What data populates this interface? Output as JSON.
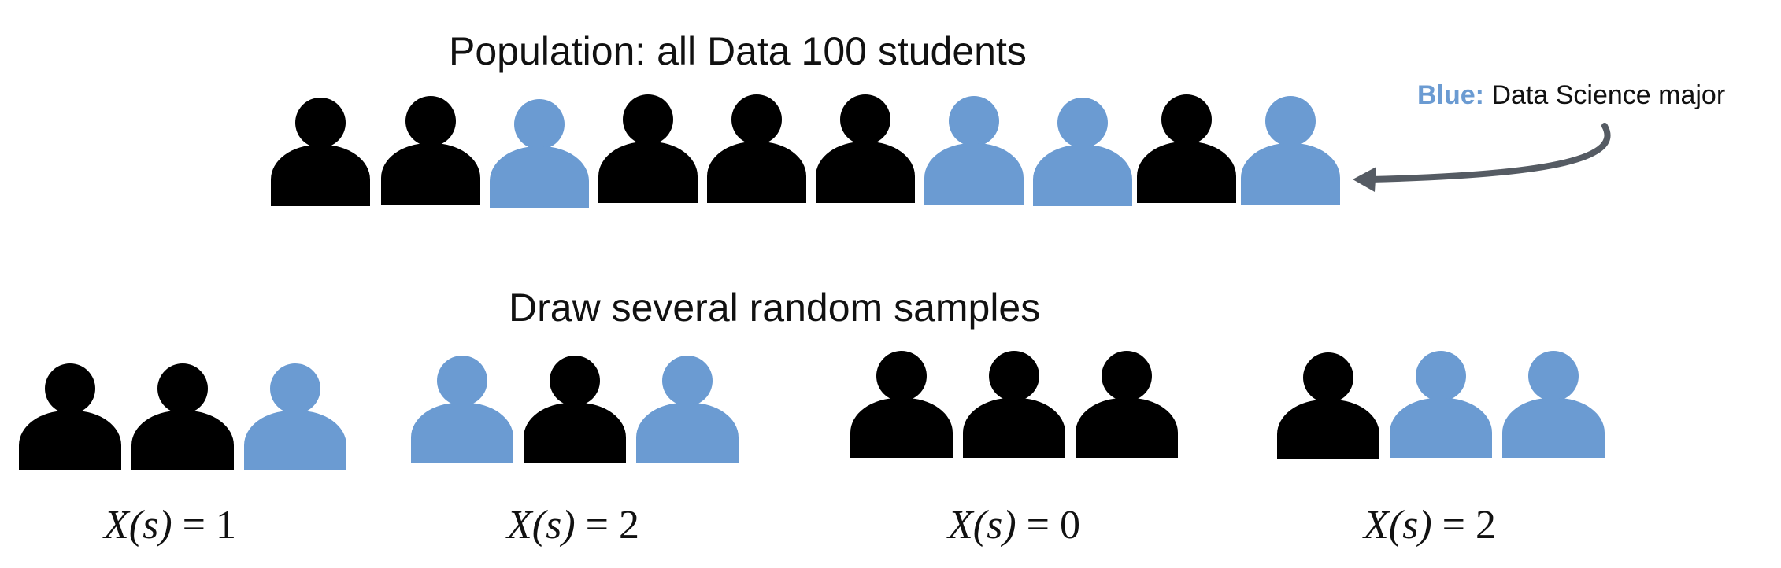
{
  "colors": {
    "major": "#6b9bd2",
    "other": "#000000",
    "arrow": "#555b63"
  },
  "population": {
    "title": "Population: all Data 100 students",
    "people": [
      "other",
      "other",
      "major",
      "other",
      "other",
      "other",
      "major",
      "major",
      "other",
      "major"
    ]
  },
  "legend": {
    "key": "Blue:",
    "text": "Data Science major"
  },
  "samples_title": "Draw several random samples",
  "samples": [
    {
      "people": [
        "other",
        "other",
        "major"
      ],
      "label_fn": "X(s)",
      "label_rest": " = 1"
    },
    {
      "people": [
        "major",
        "other",
        "major"
      ],
      "label_fn": "X(s)",
      "label_rest": " = 2"
    },
    {
      "people": [
        "other",
        "other",
        "other"
      ],
      "label_fn": "X(s)",
      "label_rest": " = 0"
    },
    {
      "people": [
        "other",
        "major",
        "major"
      ],
      "label_fn": "X(s)",
      "label_rest": " = 2"
    }
  ]
}
